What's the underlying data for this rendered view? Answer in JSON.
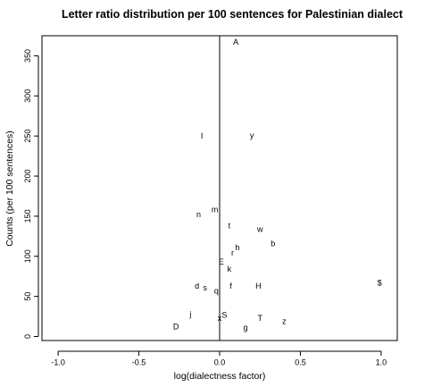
{
  "chart_data": {
    "type": "scatter",
    "title": "Letter ratio distribution per 100 sentences for Palestinian dialect",
    "xlabel": "log(dialectness factor)",
    "ylabel": "Counts (per 100 sentences)",
    "xlim": [
      -1.1,
      1.1
    ],
    "ylim": [
      -5,
      375
    ],
    "x_ticks": [
      -1.0,
      -0.5,
      0.0,
      0.5,
      1.0
    ],
    "x_tick_labels": [
      "-1.0",
      "-0.5",
      "0.0",
      "0.5",
      "1.0"
    ],
    "y_ticks": [
      0,
      50,
      100,
      150,
      200,
      250,
      300,
      350
    ],
    "y_tick_labels": [
      "0",
      "50",
      "100",
      "150",
      "200",
      "250",
      "300",
      "350"
    ],
    "vline_x": 0,
    "grid": false,
    "legend": "none",
    "points": [
      {
        "label": "A",
        "x": 0.1,
        "y": 367
      },
      {
        "label": "I",
        "x": -0.11,
        "y": 250
      },
      {
        "label": "y",
        "x": 0.2,
        "y": 251
      },
      {
        "label": "m",
        "x": -0.03,
        "y": 158
      },
      {
        "label": "n",
        "x": -0.13,
        "y": 152
      },
      {
        "label": "t",
        "x": 0.06,
        "y": 138
      },
      {
        "label": "w",
        "x": 0.25,
        "y": 134
      },
      {
        "label": "b",
        "x": 0.33,
        "y": 116
      },
      {
        "label": "h",
        "x": 0.11,
        "y": 111
      },
      {
        "label": "r",
        "x": 0.08,
        "y": 104
      },
      {
        "label": "E",
        "x": 0.01,
        "y": 93
      },
      {
        "label": "k",
        "x": 0.06,
        "y": 84
      },
      {
        "label": "d",
        "x": -0.14,
        "y": 63
      },
      {
        "label": "s",
        "x": -0.09,
        "y": 61
      },
      {
        "label": "q",
        "x": -0.02,
        "y": 57
      },
      {
        "label": "f",
        "x": 0.07,
        "y": 63
      },
      {
        "label": "H",
        "x": 0.24,
        "y": 63
      },
      {
        "label": "$",
        "x": 0.99,
        "y": 67
      },
      {
        "label": "j",
        "x": -0.18,
        "y": 28
      },
      {
        "label": "S",
        "x": 0.03,
        "y": 27
      },
      {
        "label": "x",
        "x": 0.0,
        "y": 23
      },
      {
        "label": "T",
        "x": 0.25,
        "y": 23
      },
      {
        "label": "z",
        "x": 0.4,
        "y": 19
      },
      {
        "label": "D",
        "x": -0.27,
        "y": 12
      },
      {
        "label": "g",
        "x": 0.16,
        "y": 11
      }
    ]
  }
}
